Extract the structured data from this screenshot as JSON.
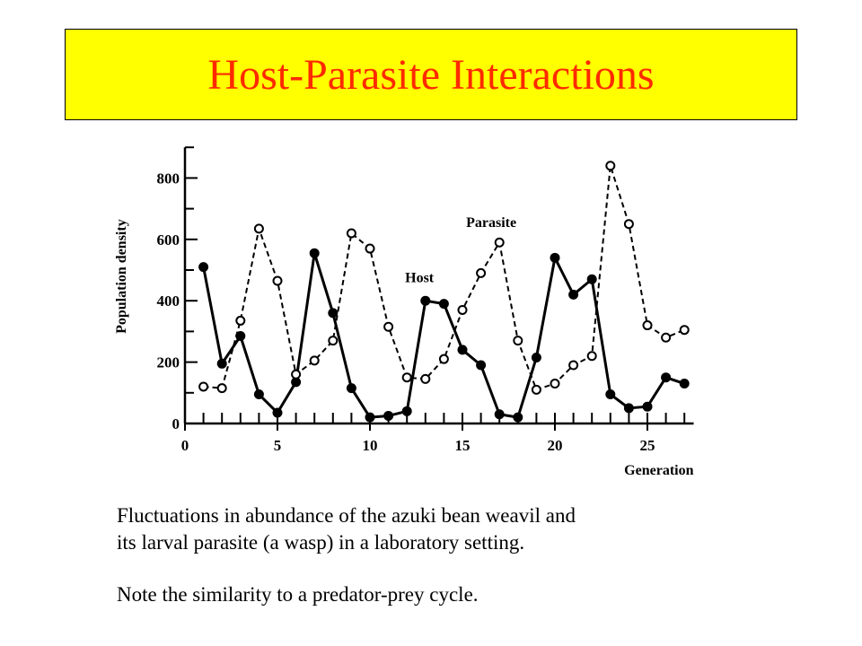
{
  "title": "Host-Parasite Interactions",
  "caption": {
    "line1": "Fluctuations in abundance of the azuki bean weavil and",
    "line2": "its larval parasite (a wasp) in a laboratory setting.",
    "note": "Note the similarity to a predator-prey cycle."
  },
  "colors": {
    "banner_bg": "#ffff00",
    "title_text": "#ff2a00",
    "ink": "#000000"
  },
  "chart_data": {
    "type": "line",
    "xlabel": "Generation",
    "ylabel": "Population density",
    "xlim": [
      0,
      27.5
    ],
    "ylim": [
      0,
      900
    ],
    "xticks": [
      0,
      5,
      10,
      15,
      20,
      25
    ],
    "yticks": [
      0,
      200,
      400,
      600,
      800
    ],
    "grid": false,
    "x": [
      1,
      2,
      3,
      4,
      5,
      6,
      7,
      8,
      9,
      10,
      11,
      12,
      13,
      14,
      15,
      16,
      17,
      18,
      19,
      20,
      21,
      22,
      23,
      24,
      25,
      26,
      27
    ],
    "series": [
      {
        "name": "Host",
        "style": "solid-line-filled-markers",
        "values": [
          510,
          195,
          285,
          95,
          35,
          135,
          555,
          360,
          115,
          20,
          25,
          40,
          400,
          390,
          240,
          190,
          30,
          20,
          215,
          540,
          420,
          470,
          95,
          50,
          55,
          150,
          130
        ]
      },
      {
        "name": "Parasite",
        "style": "dashed-line-open-markers",
        "values": [
          120,
          115,
          335,
          635,
          465,
          160,
          205,
          270,
          620,
          570,
          315,
          150,
          145,
          210,
          370,
          490,
          590,
          270,
          110,
          130,
          190,
          220,
          840,
          650,
          320,
          280,
          305
        ]
      }
    ]
  }
}
